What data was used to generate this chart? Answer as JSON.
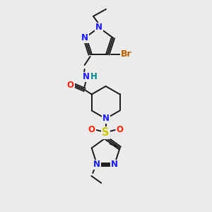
{
  "background_color": "#ebebeb",
  "atom_colors": {
    "N": "#1a1aff",
    "O": "#ff2200",
    "S": "#cccc00",
    "Br": "#b86000",
    "H": "#008888",
    "C": "#1a1a1a"
  },
  "font_size": 8.5,
  "lw": 1.4
}
